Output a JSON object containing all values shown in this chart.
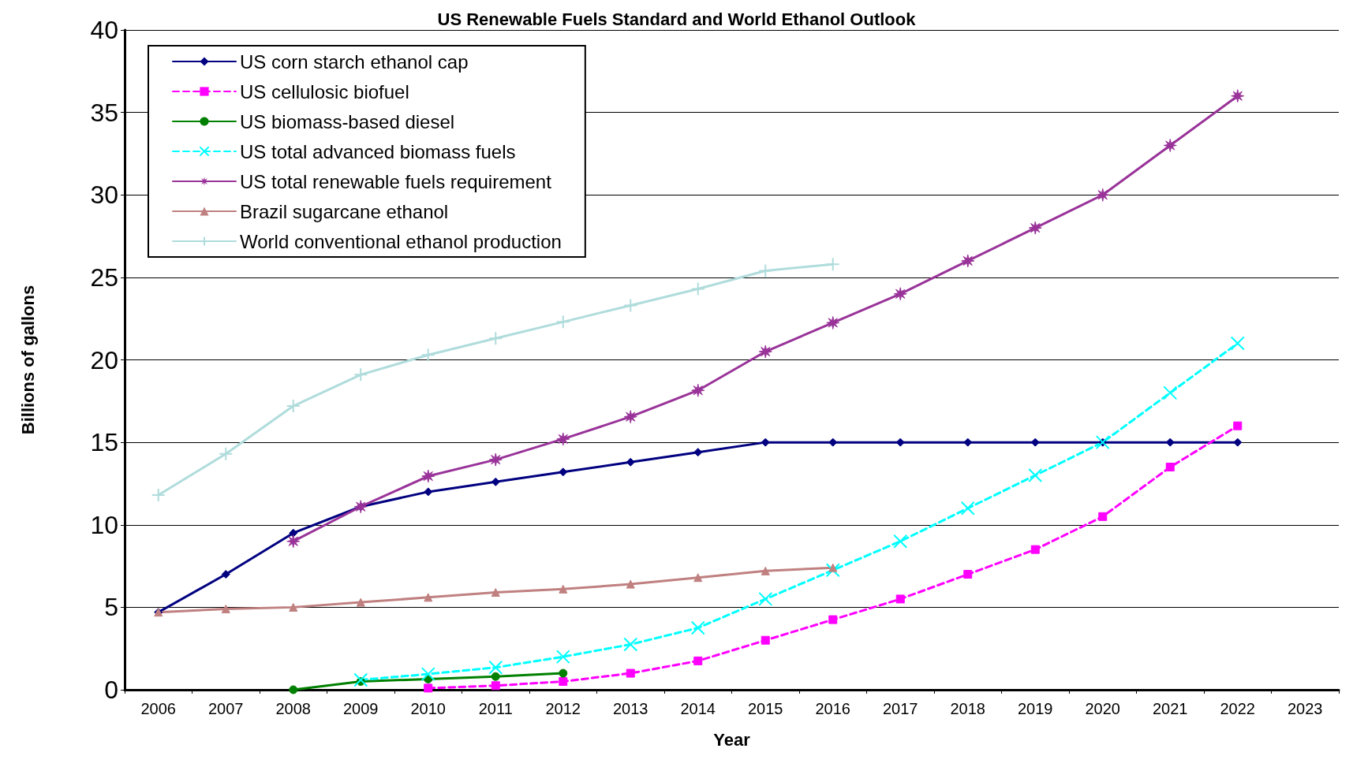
{
  "chart_data": {
    "type": "line",
    "title": "US Renewable Fuels Standard and World Ethanol Outlook",
    "xlabel": "Year",
    "ylabel": "Billions of gallons",
    "categories": [
      "2006",
      "2007",
      "2008",
      "2009",
      "2010",
      "2011",
      "2012",
      "2013",
      "2014",
      "2015",
      "2016",
      "2017",
      "2018",
      "2019",
      "2020",
      "2021",
      "2022",
      "2023"
    ],
    "ylim": [
      0,
      40
    ],
    "yticks": [
      0,
      5,
      10,
      15,
      20,
      25,
      30,
      35,
      40
    ],
    "grid": "y",
    "legend": "top left",
    "series": [
      {
        "name": "US corn starch ethanol cap",
        "color": "#000080",
        "marker": "diamond",
        "line_style": "solid",
        "values": [
          4.7,
          7.0,
          9.5,
          11.1,
          12.0,
          12.6,
          13.2,
          13.8,
          14.4,
          15,
          15,
          15,
          15,
          15,
          15,
          15,
          15,
          null
        ]
      },
      {
        "name": "US cellulosic biofuel",
        "color": "#ff00ff",
        "marker": "square",
        "line_style": "dashed",
        "values": [
          null,
          null,
          null,
          null,
          0.1,
          0.25,
          0.5,
          1.0,
          1.75,
          3.0,
          4.25,
          5.5,
          7.0,
          8.5,
          10.5,
          13.5,
          16.0,
          null
        ]
      },
      {
        "name": "US biomass-based diesel",
        "color": "#008000",
        "marker": "circle",
        "line_style": "solid",
        "values": [
          null,
          null,
          0,
          0.5,
          0.65,
          0.8,
          1.0,
          null,
          null,
          null,
          null,
          null,
          null,
          null,
          null,
          null,
          null,
          null
        ]
      },
      {
        "name": "US total advanced biomass fuels",
        "color": "#00ffff",
        "marker": "cross",
        "line_style": "dashed",
        "values": [
          null,
          null,
          null,
          0.6,
          0.95,
          1.35,
          2.0,
          2.75,
          3.75,
          5.5,
          7.25,
          9.0,
          11.0,
          13.0,
          15.0,
          18.0,
          21.0,
          null
        ]
      },
      {
        "name": "US total renewable fuels requirement",
        "color": "#993399",
        "marker": "star",
        "line_style": "solid",
        "values": [
          null,
          null,
          9.0,
          11.1,
          12.95,
          13.95,
          15.2,
          16.55,
          18.15,
          20.5,
          22.25,
          24.0,
          26.0,
          28.0,
          30.0,
          33.0,
          36.0,
          null
        ]
      },
      {
        "name": "Brazil sugarcane ethanol",
        "color": "#c08080",
        "marker": "triangle",
        "line_style": "solid",
        "values": [
          4.7,
          4.9,
          5.0,
          5.3,
          5.6,
          5.9,
          6.1,
          6.4,
          6.8,
          7.2,
          7.4,
          null,
          null,
          null,
          null,
          null,
          null,
          null
        ]
      },
      {
        "name": "World conventional ethanol production",
        "color": "#b0dcdc",
        "marker": "plus",
        "line_style": "solid",
        "values": [
          11.8,
          14.3,
          17.2,
          19.1,
          20.3,
          21.3,
          22.3,
          23.3,
          24.3,
          25.4,
          25.8,
          null,
          null,
          null,
          null,
          null,
          null,
          null
        ]
      }
    ]
  }
}
